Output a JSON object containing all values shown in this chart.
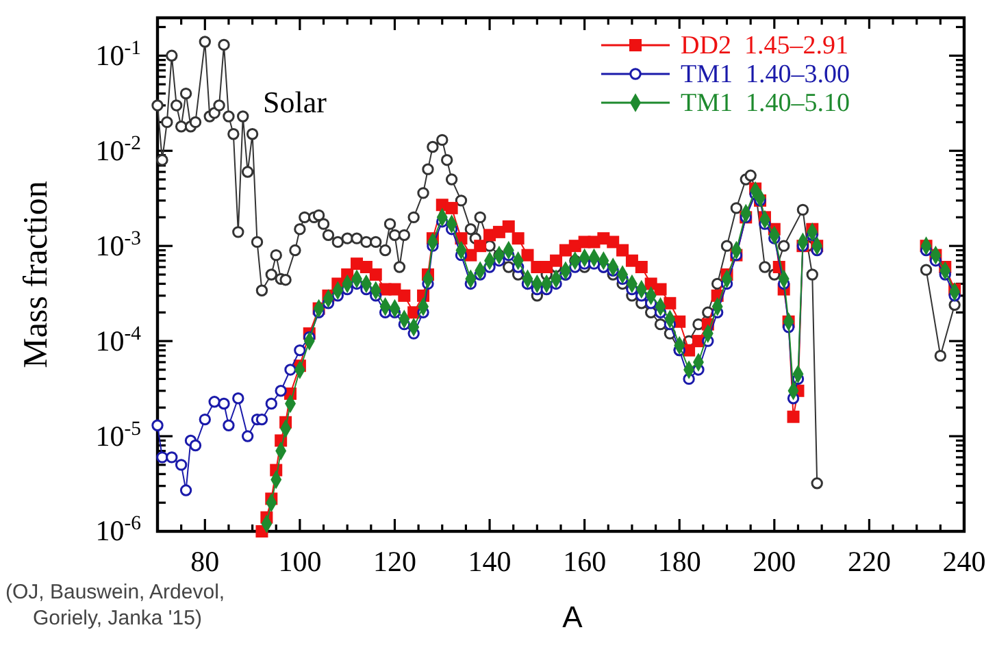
{
  "chart_data": {
    "type": "line",
    "xlabel": "A",
    "ylabel": "Mass fraction",
    "log": true,
    "legend": "top right",
    "line_style": "solid",
    "xlim": [
      70,
      240
    ],
    "ylim": [
      1e-06,
      0.25
    ],
    "xticks": [
      {
        "value": 70,
        "label": null
      },
      {
        "value": 75,
        "label": null
      },
      80,
      {
        "value": 85,
        "label": null
      },
      {
        "value": 90,
        "label": null
      },
      {
        "value": 95,
        "label": null
      },
      100,
      {
        "value": 105,
        "label": null
      },
      {
        "value": 110,
        "label": null
      },
      {
        "value": 115,
        "label": null
      },
      120,
      {
        "value": 125,
        "label": null
      },
      {
        "value": 130,
        "label": null
      },
      {
        "value": 135,
        "label": null
      },
      140,
      {
        "value": 145,
        "label": null
      },
      {
        "value": 150,
        "label": null
      },
      {
        "value": 155,
        "label": null
      },
      160,
      {
        "value": 165,
        "label": null
      },
      {
        "value": 170,
        "label": null
      },
      {
        "value": 175,
        "label": null
      },
      180,
      {
        "value": 185,
        "label": null
      },
      {
        "value": 190,
        "label": null
      },
      {
        "value": 195,
        "label": null
      },
      200,
      {
        "value": 205,
        "label": null
      },
      {
        "value": 210,
        "label": null
      },
      {
        "value": 215,
        "label": null
      },
      220,
      {
        "value": 225,
        "label": null
      },
      {
        "value": 230,
        "label": null
      },
      {
        "value": 235,
        "label": null
      },
      240
    ],
    "yticks": [
      {
        "value": 1e-06,
        "label": "10$^{-6}$"
      },
      {
        "value": 1e-05,
        "label": "10$^{-5}$"
      },
      {
        "value": 0.0001,
        "label": "10$^{-4}$"
      },
      {
        "value": 0.001,
        "label": "10$^{-3}$"
      },
      {
        "value": 0.01,
        "label": "10$^{-2}$"
      },
      {
        "value": 0.1,
        "label": "10$^{-1}$"
      },
      {
        "value": 2e-06,
        "label": null
      },
      {
        "value": 3e-06,
        "label": null
      },
      {
        "value": 4e-06,
        "label": null
      },
      {
        "value": 5e-06,
        "label": null
      },
      {
        "value": 6e-06,
        "label": null
      },
      {
        "value": 7e-06,
        "label": null
      },
      {
        "value": 8e-06,
        "label": null
      },
      {
        "value": 9e-06,
        "label": null
      },
      {
        "value": 2e-05,
        "label": null
      },
      {
        "value": 3e-05,
        "label": null
      },
      {
        "value": 4e-05,
        "label": null
      },
      {
        "value": 5e-05,
        "label": null
      },
      {
        "value": 6e-05,
        "label": null
      },
      {
        "value": 7e-05,
        "label": null
      },
      {
        "value": 8e-05,
        "label": null
      },
      {
        "value": 9e-05,
        "label": null
      },
      {
        "value": 0.0002,
        "label": null
      },
      {
        "value": 0.0003,
        "label": null
      },
      {
        "value": 0.0004,
        "label": null
      },
      {
        "value": 0.0005,
        "label": null
      },
      {
        "value": 0.0006,
        "label": null
      },
      {
        "value": 0.0007,
        "label": null
      },
      {
        "value": 0.0008,
        "label": null
      },
      {
        "value": 0.0009,
        "label": null
      },
      {
        "value": 0.002,
        "label": null
      },
      {
        "value": 0.003,
        "label": null
      },
      {
        "value": 0.004,
        "label": null
      },
      {
        "value": 0.005,
        "label": null
      },
      {
        "value": 0.006,
        "label": null
      },
      {
        "value": 0.007,
        "label": null
      },
      {
        "value": 0.008,
        "label": null
      },
      {
        "value": 0.009,
        "label": null
      },
      {
        "value": 0.02,
        "label": null
      },
      {
        "value": 0.03,
        "label": null
      },
      {
        "value": 0.04,
        "label": null
      },
      {
        "value": 0.05,
        "label": null
      },
      {
        "value": 0.06,
        "label": null
      },
      {
        "value": 0.07,
        "label": null
      },
      {
        "value": 0.08,
        "label": null
      },
      {
        "value": 0.09,
        "label": null
      },
      {
        "value": 0.2,
        "label": null
      }
    ],
    "annotations": [
      "Solar",
      "(OJ, Bauswein, Ardevol, Goriely, Janka '15)"
    ],
    "series": [
      {
        "color": "#333333",
        "marker": "circle",
        "x": [
          70,
          71,
          72,
          73,
          74,
          75,
          76,
          77,
          78,
          80,
          81,
          82,
          83,
          84,
          85,
          86,
          87,
          88,
          89,
          90,
          91,
          92,
          94,
          95,
          96,
          97,
          99,
          100,
          101,
          103,
          104,
          105,
          106,
          108,
          110,
          112,
          114,
          116,
          118,
          119,
          120,
          121,
          122,
          124,
          126,
          127,
          128,
          130,
          131,
          132,
          134,
          136,
          137,
          138,
          140,
          142,
          144,
          146,
          148,
          150,
          152,
          154,
          156,
          158,
          160,
          162,
          164,
          166,
          168,
          170,
          172,
          174,
          176,
          178,
          180,
          182,
          184,
          186,
          188,
          190,
          192,
          194,
          195,
          196,
          198,
          200,
          202,
          206,
          207,
          208,
          209,
          220,
          232,
          235,
          238
        ],
        "values": [
          0.03,
          0.008,
          0.02,
          0.1,
          0.03,
          0.018,
          0.04,
          0.018,
          0.02,
          0.14,
          0.023,
          0.025,
          0.03,
          0.13,
          0.023,
          0.015,
          0.0014,
          0.023,
          0.006,
          0.015,
          0.0011,
          0.00034,
          0.0005,
          0.0008,
          0.00045,
          0.00044,
          0.0009,
          0.0015,
          0.002,
          0.002,
          0.0021,
          0.0017,
          0.0013,
          0.0011,
          0.0012,
          0.0012,
          0.0011,
          0.0011,
          0.0009,
          0.0017,
          0.0013,
          0.0006,
          0.0013,
          0.002,
          0.0036,
          0.0064,
          0.011,
          0.013,
          0.008,
          0.005,
          0.003,
          0.0015,
          0.0012,
          0.002,
          0.001,
          0.0008,
          0.0006,
          0.0005,
          0.0004,
          0.0003,
          0.0005,
          0.0006,
          0.0005,
          0.0007,
          0.0006,
          0.0007,
          0.0006,
          0.0005,
          0.0004,
          0.0003,
          0.00025,
          0.0002,
          0.00015,
          0.00012,
          8e-05,
          0.0001,
          0.00015,
          0.0002,
          0.0004,
          0.001,
          0.0025,
          0.005,
          0.0055,
          0.004,
          0.0006,
          0.0005,
          0.001,
          0.0024,
          0.001,
          0.0005,
          3.2e-06,
          null,
          0.00056,
          7e-05,
          0.00024
        ]
      },
      {
        "name": "DD2  1.45–2.91",
        "color": "#ee1111",
        "marker": "square",
        "x": [
          92,
          93,
          94,
          95,
          96,
          97,
          98,
          100,
          102,
          104,
          106,
          108,
          110,
          112,
          114,
          116,
          118,
          120,
          122,
          124,
          126,
          127,
          128,
          130,
          132,
          134,
          136,
          138,
          140,
          142,
          144,
          146,
          148,
          150,
          152,
          154,
          156,
          158,
          160,
          162,
          164,
          166,
          168,
          170,
          172,
          174,
          176,
          178,
          180,
          182,
          184,
          186,
          188,
          190,
          192,
          194,
          196,
          197,
          198,
          200,
          201,
          202,
          203,
          204,
          205,
          206,
          208,
          209,
          220,
          232,
          234,
          236,
          238
        ],
        "values": [
          1e-06,
          1.4e-06,
          2.2e-06,
          4.4e-06,
          9e-06,
          1.4e-05,
          2.8e-05,
          5.5e-05,
          0.00012,
          0.00022,
          0.0003,
          0.0004,
          0.0005,
          0.00065,
          0.0006,
          0.0005,
          0.00035,
          0.00035,
          0.0003,
          0.0002,
          0.0003,
          0.0005,
          0.0012,
          0.0027,
          0.0025,
          0.0012,
          0.0008,
          0.001,
          0.0013,
          0.0014,
          0.0016,
          0.0012,
          0.0008,
          0.0006,
          0.0006,
          0.0007,
          0.0009,
          0.001,
          0.0011,
          0.0011,
          0.0012,
          0.0011,
          0.0009,
          0.0007,
          0.0006,
          0.0004,
          0.00035,
          0.00025,
          0.00016,
          8e-05,
          0.0001,
          0.00015,
          0.0003,
          0.0005,
          0.0008,
          0.002,
          0.004,
          0.003,
          0.002,
          0.0015,
          0.0006,
          0.00035,
          0.00016,
          1.6e-05,
          3e-05,
          0.001,
          0.0015,
          0.001,
          null,
          0.001,
          0.0008,
          0.0006,
          0.00035
        ]
      },
      {
        "name": "TM1  1.40–3.00",
        "color": "#1a1aaa",
        "marker": "circle",
        "x": [
          70,
          71,
          73,
          75,
          76,
          77,
          78,
          80,
          82,
          84,
          85,
          87,
          89,
          91,
          92,
          94,
          96,
          98,
          100,
          102,
          104,
          106,
          108,
          110,
          112,
          114,
          116,
          118,
          120,
          122,
          124,
          126,
          127,
          128,
          130,
          132,
          134,
          136,
          138,
          140,
          142,
          144,
          146,
          148,
          150,
          152,
          154,
          156,
          158,
          160,
          162,
          164,
          166,
          168,
          170,
          172,
          174,
          176,
          178,
          180,
          182,
          184,
          186,
          188,
          190,
          192,
          194,
          196,
          197,
          198,
          200,
          202,
          203,
          204,
          205,
          206,
          208,
          209,
          220,
          232,
          234,
          236,
          238
        ],
        "values": [
          1.3e-05,
          6e-06,
          6e-06,
          5e-06,
          2.7e-06,
          9e-06,
          8e-06,
          1.5e-05,
          2.3e-05,
          2.2e-05,
          1.3e-05,
          2.5e-05,
          1e-05,
          1.5e-05,
          1.5e-05,
          2.2e-05,
          3e-05,
          5e-05,
          8e-05,
          0.00011,
          0.0002,
          0.00025,
          0.0003,
          0.00035,
          0.0004,
          0.00035,
          0.0003,
          0.0002,
          0.0002,
          0.00015,
          0.00012,
          0.0002,
          0.0004,
          0.001,
          0.0018,
          0.0015,
          0.0008,
          0.0004,
          0.0005,
          0.0006,
          0.0007,
          0.0008,
          0.0006,
          0.0004,
          0.00035,
          0.00035,
          0.0004,
          0.0005,
          0.0006,
          0.00065,
          0.00065,
          0.0006,
          0.00055,
          0.00045,
          0.00035,
          0.0003,
          0.00025,
          0.0002,
          0.00015,
          8e-05,
          4e-05,
          5e-05,
          0.0001,
          0.0002,
          0.0004,
          0.0008,
          0.002,
          0.0035,
          0.003,
          0.0017,
          0.0012,
          0.0004,
          0.00014,
          2.5e-05,
          4e-05,
          0.001,
          0.0013,
          0.0009,
          null,
          0.0009,
          0.0007,
          0.0005,
          0.0003
        ]
      },
      {
        "name": "TM1  1.40–5.10",
        "color": "#1e8a2e",
        "marker": "diamond",
        "x": [
          93,
          94,
          95,
          96,
          97,
          98,
          100,
          102,
          104,
          106,
          108,
          110,
          112,
          114,
          116,
          118,
          120,
          122,
          124,
          126,
          127,
          128,
          130,
          132,
          134,
          136,
          138,
          140,
          142,
          144,
          146,
          148,
          150,
          152,
          154,
          156,
          158,
          160,
          162,
          164,
          166,
          168,
          170,
          172,
          174,
          176,
          178,
          180,
          182,
          184,
          186,
          188,
          190,
          192,
          194,
          196,
          197,
          198,
          200,
          202,
          203,
          204,
          205,
          206,
          208,
          209,
          220,
          232,
          234,
          236,
          238
        ],
        "values": [
          1.2e-06,
          2e-06,
          3.5e-06,
          7e-06,
          1.2e-05,
          2.2e-05,
          5e-05,
          0.0001,
          0.00022,
          0.00028,
          0.00034,
          0.0004,
          0.00045,
          0.0004,
          0.00034,
          0.00023,
          0.00022,
          0.00017,
          0.00014,
          0.00023,
          0.00045,
          0.0011,
          0.002,
          0.0017,
          0.0009,
          0.00045,
          0.00055,
          0.0007,
          0.0008,
          0.0009,
          0.0007,
          0.00045,
          0.0004,
          0.0004,
          0.00045,
          0.00055,
          0.0007,
          0.00075,
          0.00075,
          0.0007,
          0.0006,
          0.0005,
          0.0004,
          0.00035,
          0.0003,
          0.00023,
          0.00017,
          9e-05,
          5e-05,
          6e-05,
          0.00012,
          0.00023,
          0.00045,
          0.0009,
          0.0022,
          0.0038,
          0.0032,
          0.0019,
          0.0013,
          0.00045,
          0.00016,
          3e-05,
          4.5e-05,
          0.0011,
          0.0014,
          0.001,
          null,
          0.001,
          0.0008,
          0.00055,
          0.00033
        ]
      }
    ]
  }
}
